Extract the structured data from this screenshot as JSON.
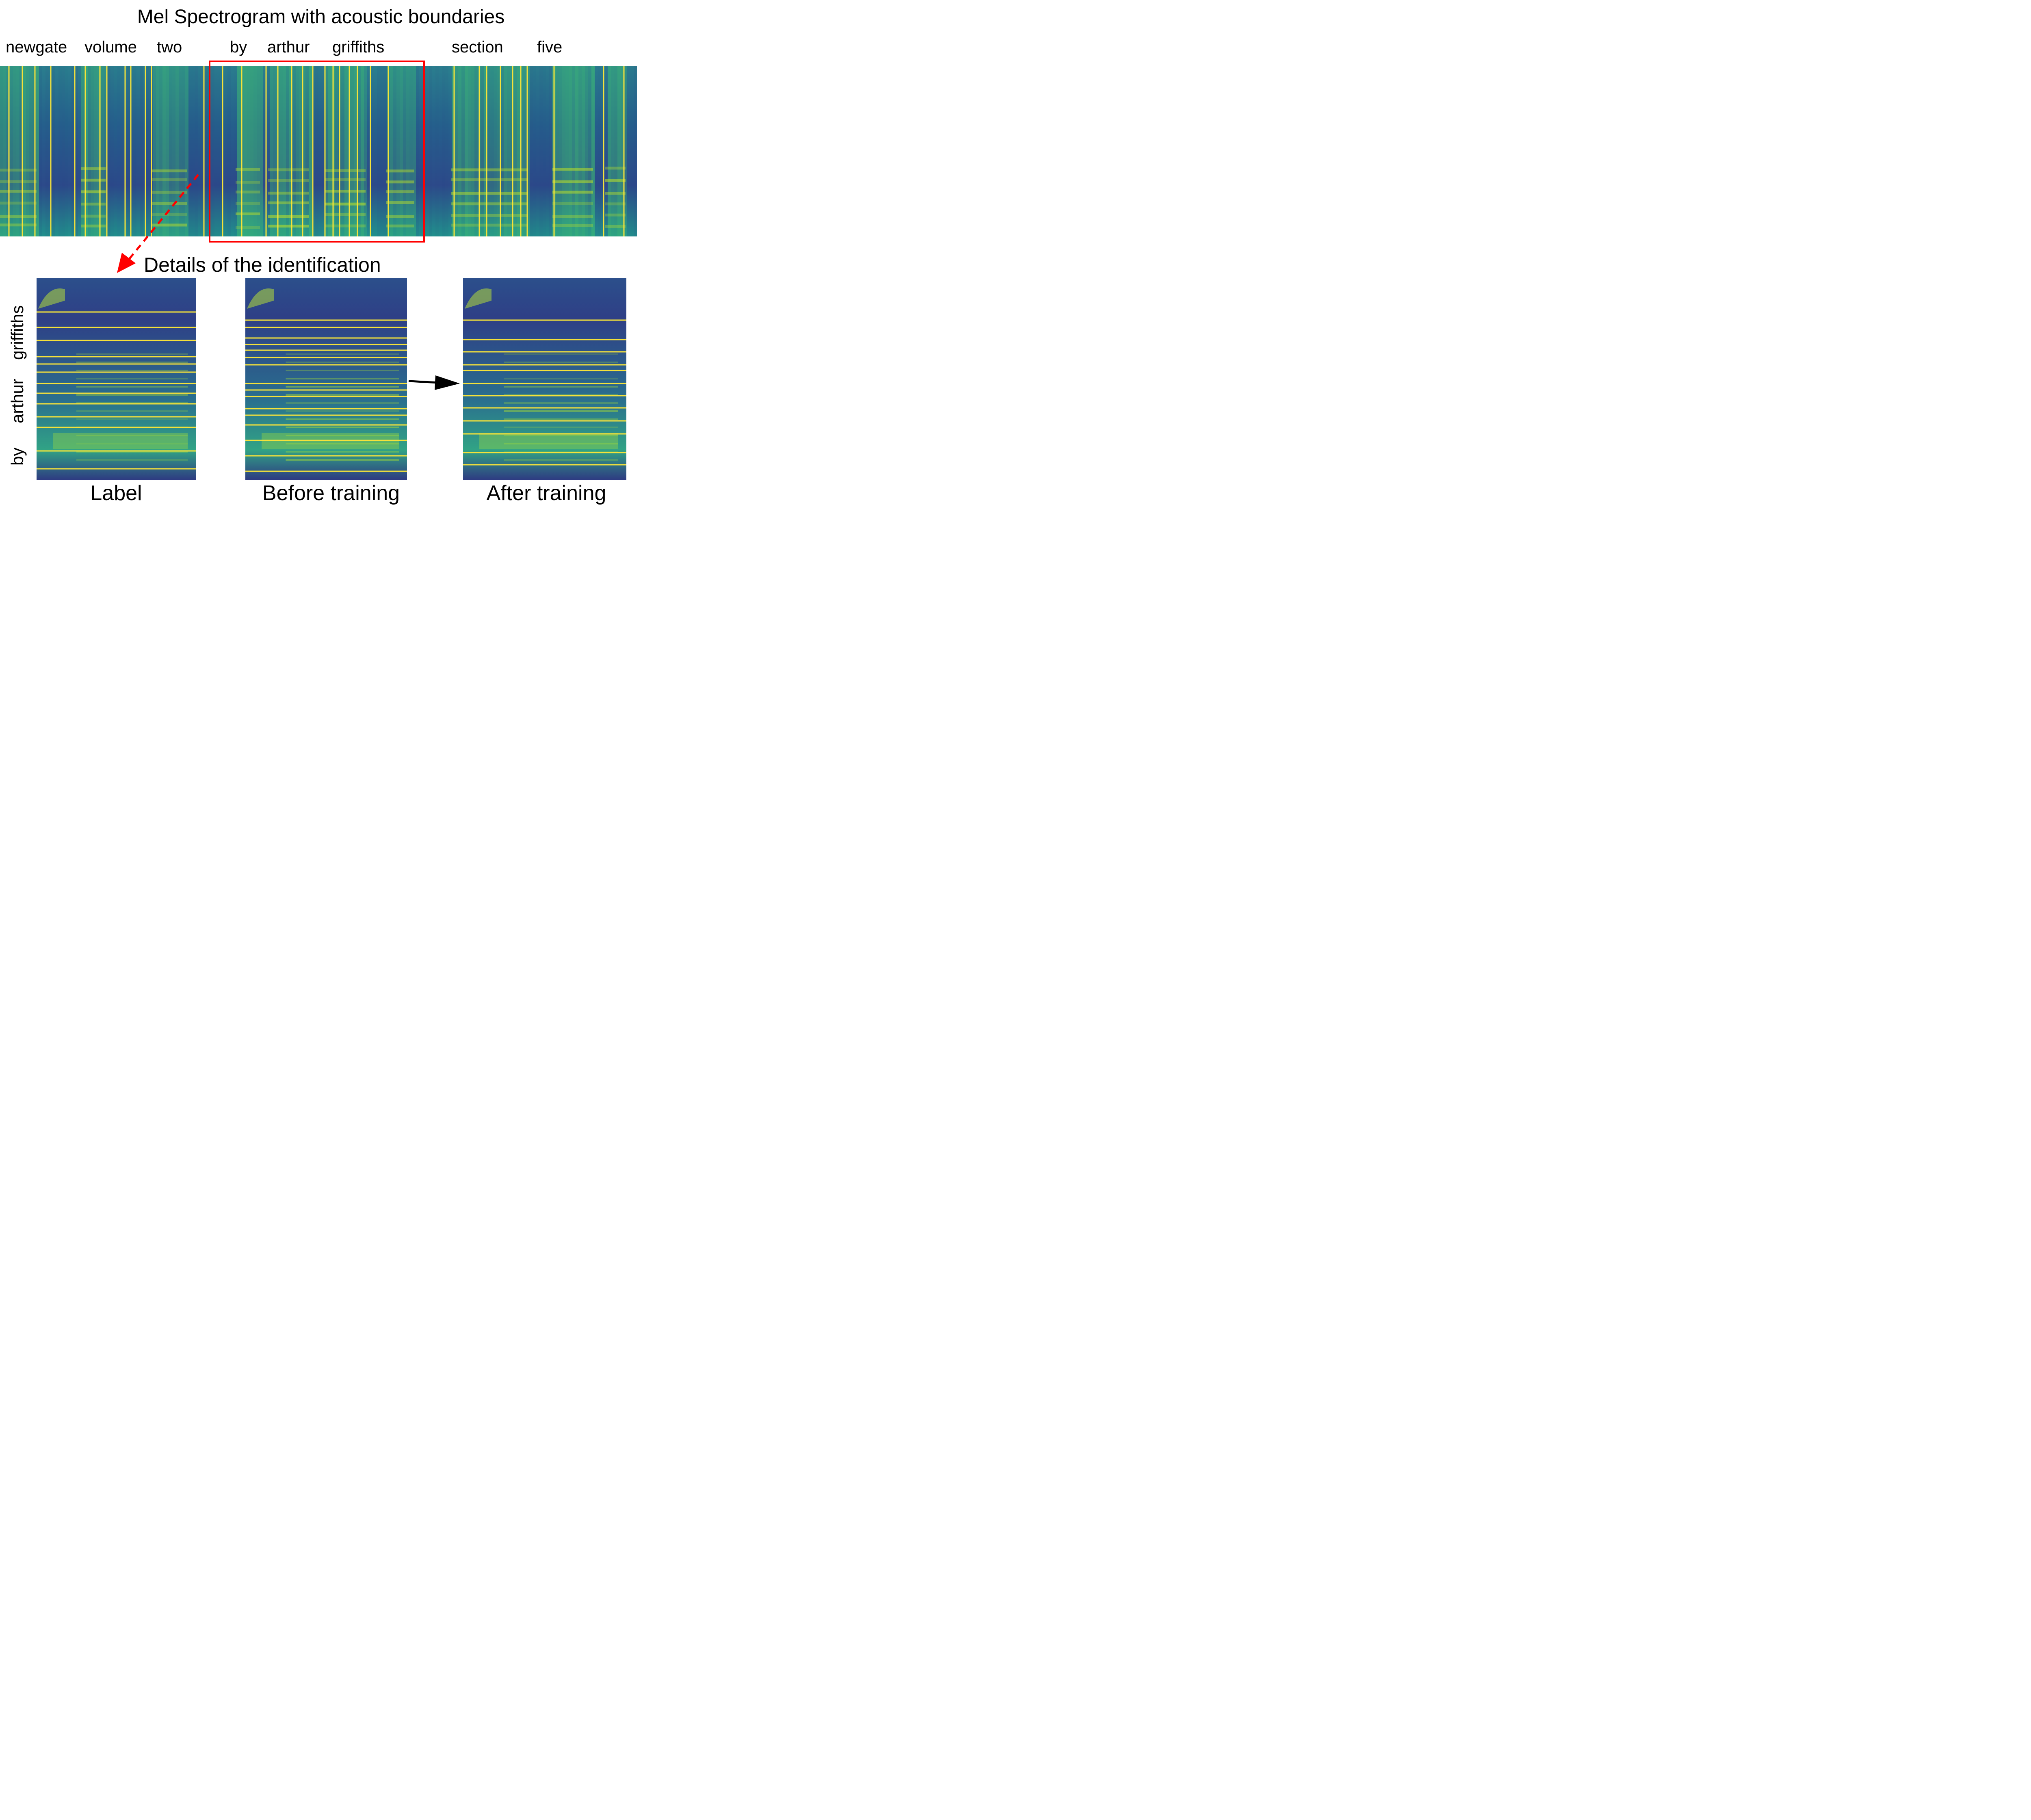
{
  "title": "Mel Spectrogram with acoustic boundaries",
  "words": [
    "newgate",
    "volume",
    "two",
    "by",
    "arthur",
    "griffiths",
    "section",
    "five"
  ],
  "details_title": "Details of the identification",
  "side_words": [
    "by",
    "arthur",
    "griffiths"
  ],
  "panels": [
    {
      "caption": "Label",
      "boundaries": 15
    },
    {
      "caption": "Before training",
      "boundaries": 17
    },
    {
      "caption": "After training",
      "boundaries": 14
    }
  ],
  "colors": {
    "boundary_line": "#f5e23a",
    "highlight_box": "#ff0000",
    "arrow_dashed": "#ff0000",
    "arrow_solid": "#000000",
    "spectrogram_low": "#2b3a83",
    "spectrogram_mid": "#21918c",
    "spectrogram_high": "#f0e340"
  },
  "icons": [
    "dashed-red-arrow",
    "black-arrow"
  ]
}
